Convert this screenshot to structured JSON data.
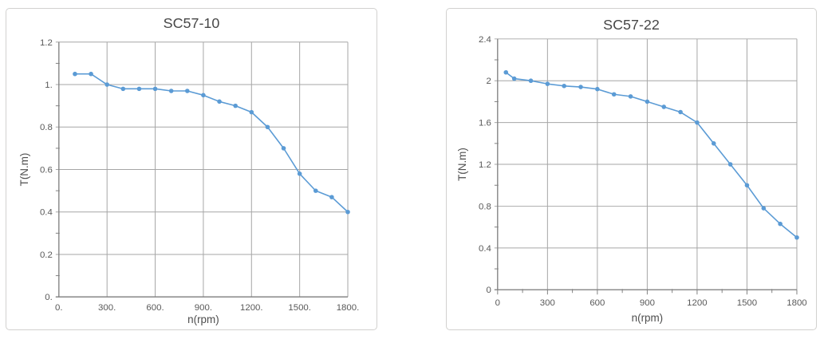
{
  "page": {
    "background": "#ffffff"
  },
  "colors": {
    "grid": "#a6a6a6",
    "axis": "#808080",
    "tick_label": "#595959",
    "title": "#474747",
    "axis_title": "#4d4d4d",
    "series": "#5b9bd5",
    "panel_border": "#d2d1cf"
  },
  "chart_data": [
    {
      "type": "line",
      "title": "SC57-10",
      "xlabel": "n(rpm)",
      "ylabel": "T(N.m)",
      "xlim": [
        0,
        1800
      ],
      "ylim": [
        0,
        1.2
      ],
      "grid": true,
      "legend": "none",
      "marker": "circle",
      "line_color": "#5b9bd5",
      "x": [
        100,
        200,
        300,
        400,
        500,
        600,
        700,
        800,
        900,
        1000,
        1100,
        1200,
        1300,
        1400,
        1500,
        1600,
        1700,
        1800
      ],
      "y": [
        1.05,
        1.05,
        1.0,
        0.98,
        0.98,
        0.98,
        0.97,
        0.97,
        0.95,
        0.92,
        0.9,
        0.87,
        0.8,
        0.7,
        0.58,
        0.5,
        0.47,
        0.4
      ],
      "x_ticks": {
        "values": [
          0,
          300,
          600,
          900,
          1200,
          1500,
          1800
        ],
        "labels": [
          "0.",
          "300.",
          "600.",
          "900.",
          "1200.",
          "1500.",
          "1800."
        ]
      },
      "y_ticks": {
        "values": [
          0,
          0.2,
          0.4,
          0.6,
          0.8,
          1.0,
          1.2
        ],
        "labels": [
          "0.",
          "0.2",
          "0.4",
          "0.6",
          "0.8",
          "1.",
          "1.2"
        ]
      },
      "y_minor_step": 0.1,
      "x_minor_step": null
    },
    {
      "type": "line",
      "title": "SC57-22",
      "xlabel": "n(rpm)",
      "ylabel": "T(N.m)",
      "xlim": [
        0,
        1800
      ],
      "ylim": [
        0,
        2.4
      ],
      "grid": true,
      "legend": "none",
      "marker": "circle",
      "line_color": "#5b9bd5",
      "x": [
        50,
        100,
        200,
        300,
        400,
        500,
        600,
        700,
        800,
        900,
        1000,
        1100,
        1200,
        1300,
        1400,
        1500,
        1600,
        1700,
        1800
      ],
      "y": [
        2.08,
        2.02,
        2.0,
        1.97,
        1.95,
        1.94,
        1.92,
        1.87,
        1.85,
        1.8,
        1.75,
        1.7,
        1.6,
        1.4,
        1.2,
        1.0,
        0.78,
        0.63,
        0.5
      ],
      "x_ticks": {
        "values": [
          0,
          300,
          600,
          900,
          1200,
          1500,
          1800
        ],
        "labels": [
          "0",
          "300",
          "600",
          "900",
          "1200",
          "1500",
          "1800"
        ]
      },
      "y_ticks": {
        "values": [
          0,
          0.4,
          0.8,
          1.2,
          1.6,
          2.0,
          2.4
        ],
        "labels": [
          "0",
          "0.4",
          "0.8",
          "1.2",
          "1.6",
          "2",
          "2.4"
        ]
      },
      "y_minor_step": 0.2,
      "x_minor_step": 150
    }
  ]
}
